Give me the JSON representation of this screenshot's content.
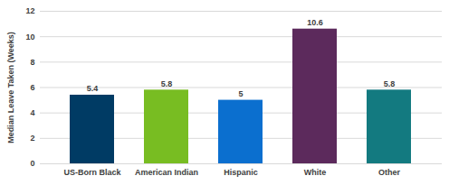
{
  "chart_data": {
    "type": "bar",
    "y_label": "Median Leave Taken (Weeks)",
    "categories": [
      "US-Born Black",
      "American Indian",
      "Hispanic",
      "White",
      "Other"
    ],
    "values": [
      5.4,
      5.8,
      5,
      10.6,
      5.8
    ],
    "colors": [
      "#003b64",
      "#78bd22",
      "#0b6fcf",
      "#5c2a5c",
      "#137a80"
    ],
    "ylim": [
      0,
      12
    ],
    "yticks": [
      0,
      2,
      4,
      6,
      8,
      10,
      12
    ],
    "grid": true,
    "data_labels": true
  }
}
